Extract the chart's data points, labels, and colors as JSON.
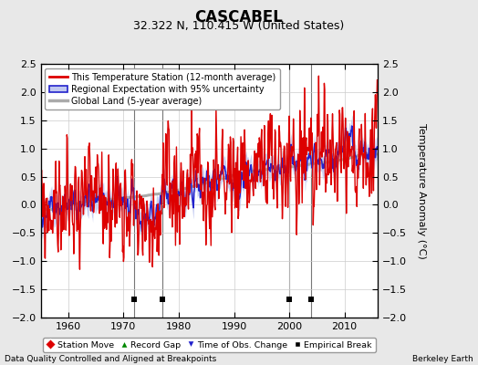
{
  "title": "CASCABEL",
  "subtitle": "32.322 N, 110.415 W (United States)",
  "ylabel": "Temperature Anomaly (°C)",
  "footnote_left": "Data Quality Controlled and Aligned at Breakpoints",
  "footnote_right": "Berkeley Earth",
  "xlim": [
    1955,
    2016
  ],
  "ylim": [
    -2.0,
    2.5
  ],
  "yticks": [
    -2,
    -1.5,
    -1,
    -0.5,
    0,
    0.5,
    1,
    1.5,
    2,
    2.5
  ],
  "xticks": [
    1960,
    1970,
    1980,
    1990,
    2000,
    2010
  ],
  "bg_color": "#e8e8e8",
  "plot_bg_color": "#ffffff",
  "grid_color": "#cccccc",
  "vertical_lines": [
    1972,
    1977,
    2000,
    2004
  ],
  "empirical_breaks": [
    1972,
    1977,
    2000,
    2004
  ],
  "red_line_color": "#dd0000",
  "blue_line_color": "#2222cc",
  "blue_fill_color": "#c0c8f0",
  "gray_line_color": "#aaaaaa",
  "title_fontsize": 12,
  "subtitle_fontsize": 9,
  "axis_fontsize": 8,
  "ylabel_fontsize": 8
}
